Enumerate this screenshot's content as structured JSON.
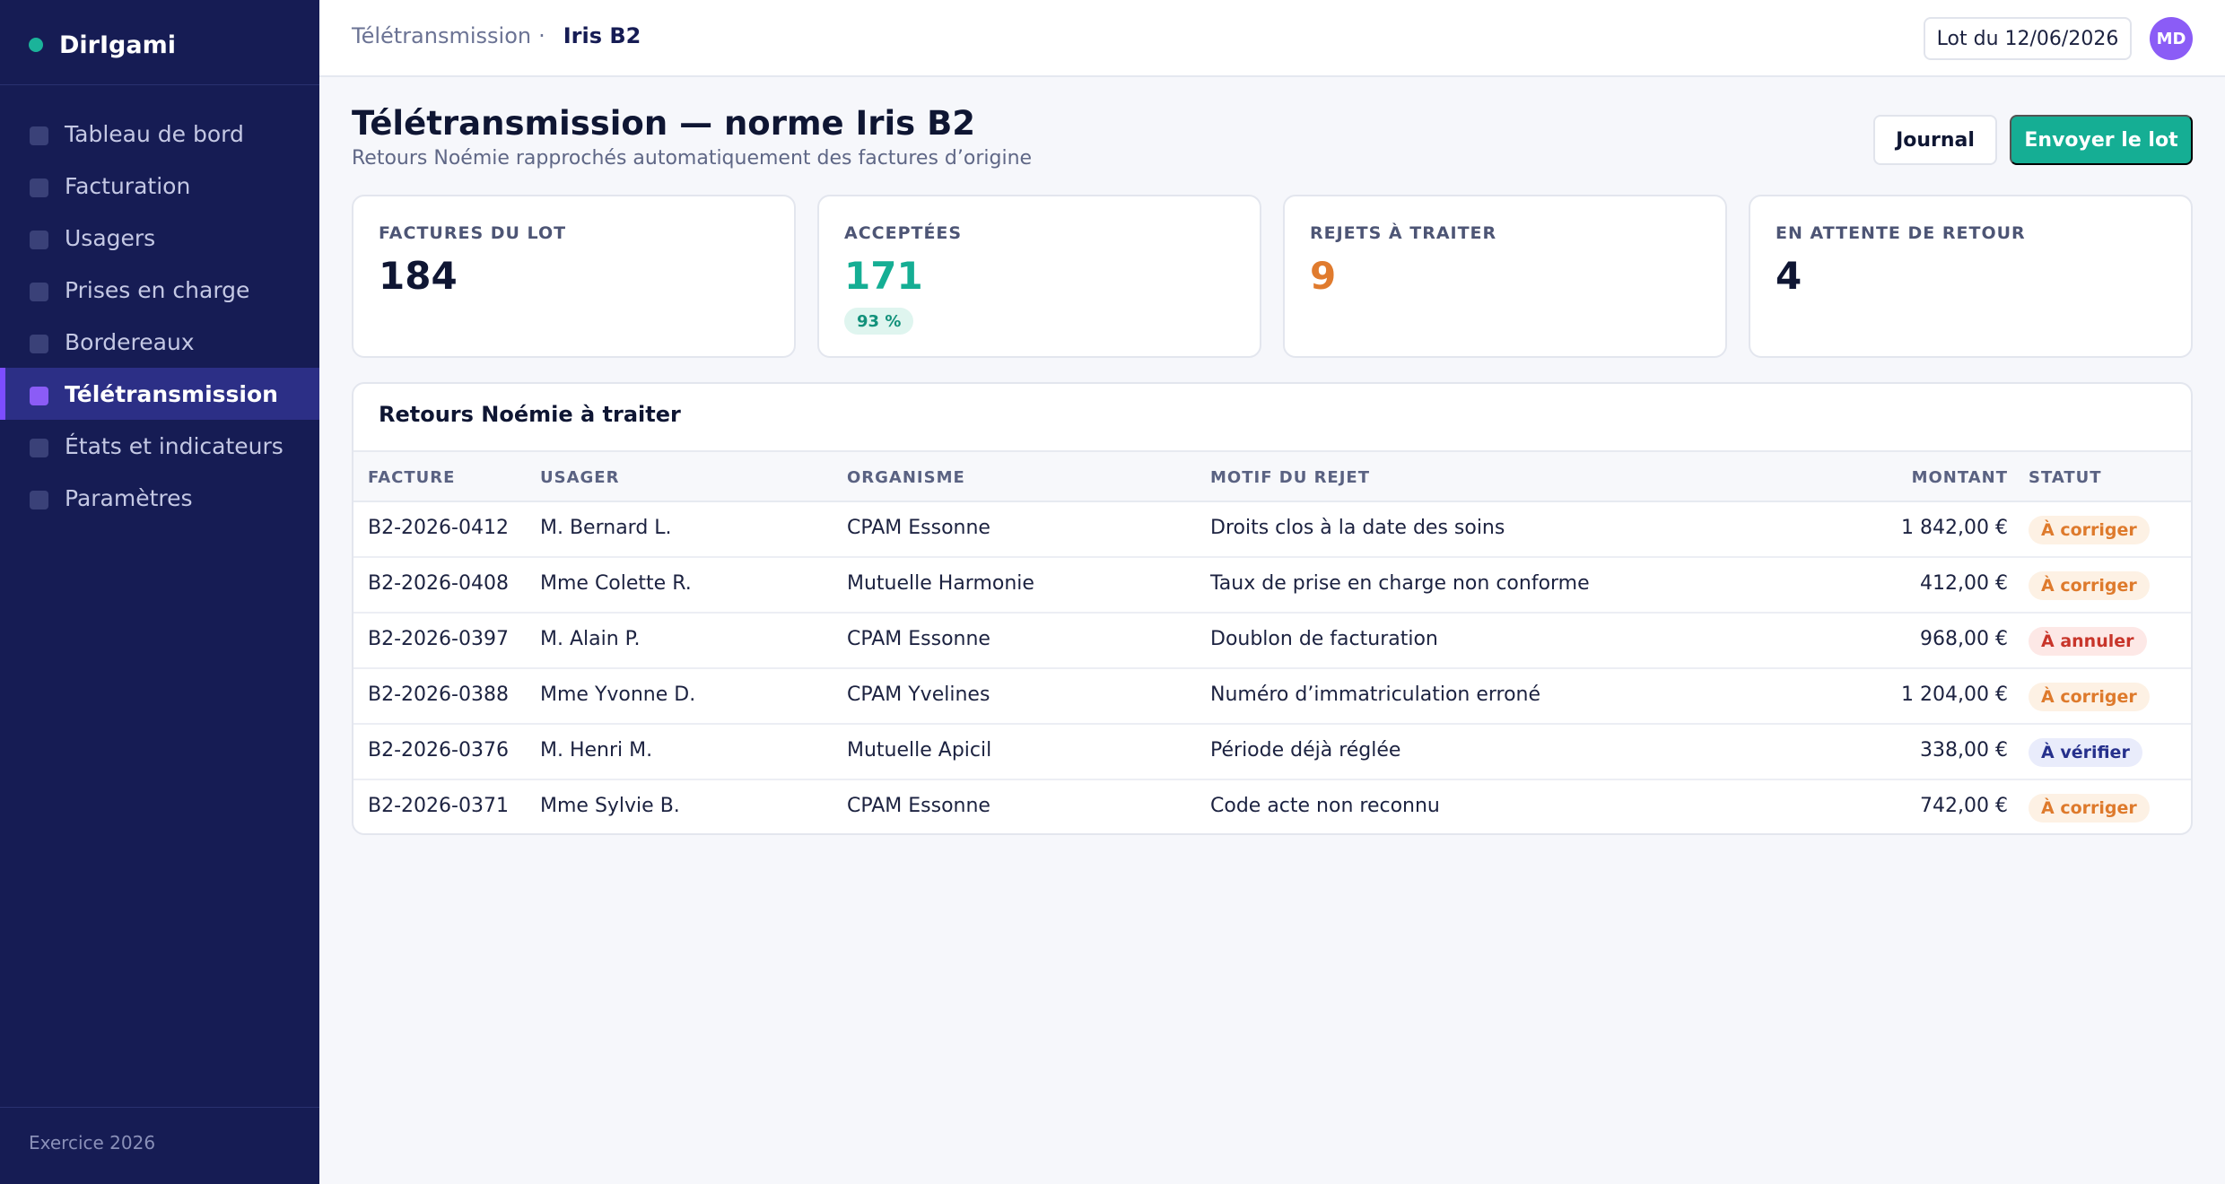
{
  "app": {
    "name": "DirIgami"
  },
  "sidebar": {
    "items": [
      {
        "label": "Tableau de bord",
        "active": false
      },
      {
        "label": "Facturation",
        "active": false
      },
      {
        "label": "Usagers",
        "active": false
      },
      {
        "label": "Prises en charge",
        "active": false
      },
      {
        "label": "Bordereaux",
        "active": false
      },
      {
        "label": "Télétransmission",
        "active": true
      },
      {
        "label": "États et indicateurs",
        "active": false
      },
      {
        "label": "Paramètres",
        "active": false
      }
    ],
    "footer": "Exercice 2026"
  },
  "topbar": {
    "breadcrumb_parent": "Télétransmission",
    "breadcrumb_sep": "·",
    "breadcrumb_current": "Iris B2",
    "lot_label": "Lot du 12/06/2026",
    "avatar_initials": "MD"
  },
  "header": {
    "title": "Télétransmission — norme Iris B2",
    "subtitle": "Retours Noémie rapprochés automatiquement des factures d’origine",
    "journal_button": "Journal",
    "send_button": "Envoyer le lot"
  },
  "kpis": [
    {
      "label": "Factures du lot",
      "value": "184",
      "tone": "default"
    },
    {
      "label": "Acceptées",
      "value": "171",
      "tone": "green",
      "badge": "93 %"
    },
    {
      "label": "Rejets à traiter",
      "value": "9",
      "tone": "orange"
    },
    {
      "label": "En attente de retour",
      "value": "4",
      "tone": "default"
    }
  ],
  "table": {
    "title": "Retours Noémie à traiter",
    "columns": {
      "facture": "FACTURE",
      "usager": "USAGER",
      "organisme": "ORGANISME",
      "motif": "MOTIF DU REJET",
      "montant": "MONTANT",
      "statut": "STATUT"
    },
    "rows": [
      {
        "facture": "B2-2026-0412",
        "usager": "M. Bernard L.",
        "organisme": "CPAM Essonne",
        "motif": "Droits clos à la date des soins",
        "montant": "1 842,00 €",
        "statut": "À corriger",
        "statut_type": "corriger"
      },
      {
        "facture": "B2-2026-0408",
        "usager": "Mme Colette R.",
        "organisme": "Mutuelle Harmonie",
        "motif": "Taux de prise en charge non conforme",
        "montant": "412,00 €",
        "statut": "À corriger",
        "statut_type": "corriger"
      },
      {
        "facture": "B2-2026-0397",
        "usager": "M. Alain P.",
        "organisme": "CPAM Essonne",
        "motif": "Doublon de facturation",
        "montant": "968,00 €",
        "statut": "À annuler",
        "statut_type": "annuler"
      },
      {
        "facture": "B2-2026-0388",
        "usager": "Mme Yvonne D.",
        "organisme": "CPAM Yvelines",
        "motif": "Numéro d’immatriculation erroné",
        "montant": "1 204,00 €",
        "statut": "À corriger",
        "statut_type": "corriger"
      },
      {
        "facture": "B2-2026-0376",
        "usager": "M. Henri M.",
        "organisme": "Mutuelle Apicil",
        "motif": "Période déjà réglée",
        "montant": "338,00 €",
        "statut": "À vérifier",
        "statut_type": "verifier"
      },
      {
        "facture": "B2-2026-0371",
        "usager": "Mme Sylvie B.",
        "organisme": "CPAM Essonne",
        "motif": "Code acte non reconnu",
        "montant": "742,00 €",
        "statut": "À corriger",
        "statut_type": "corriger"
      }
    ]
  },
  "colors": {
    "sidebar_bg": "#161c54",
    "accent_green": "#15ae94",
    "accent_purple": "#8b5cf6",
    "reject_orange": "#e07b2e"
  }
}
